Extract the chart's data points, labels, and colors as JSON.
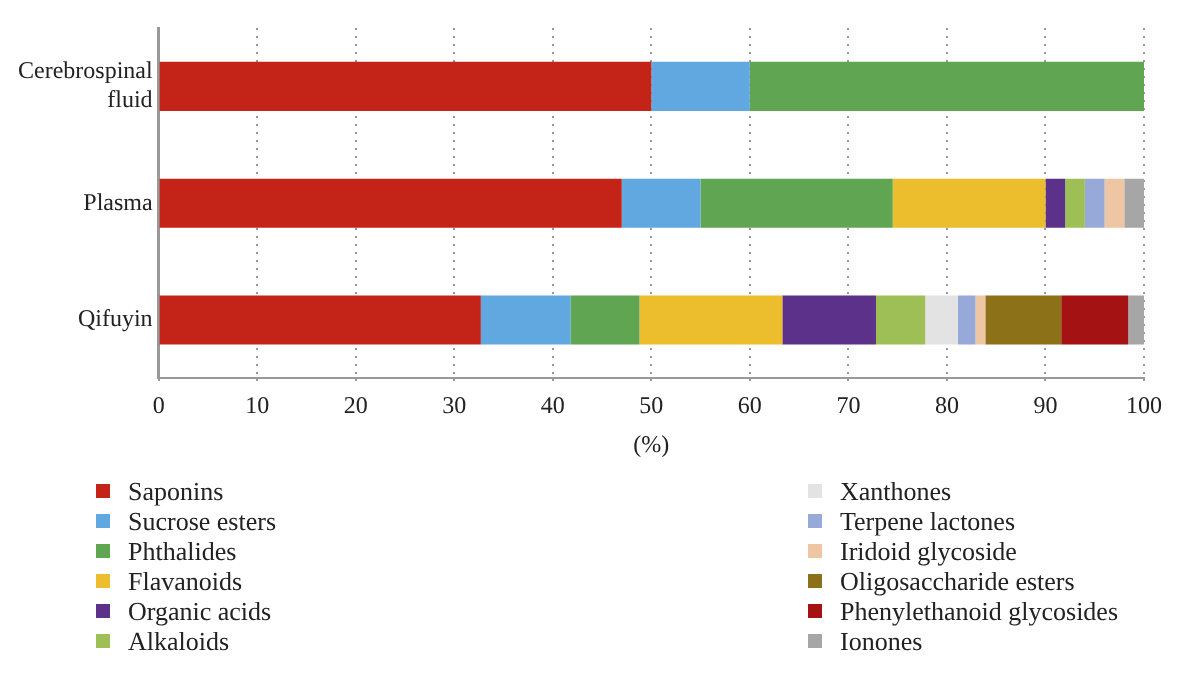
{
  "chart_data": {
    "type": "bar",
    "orientation": "horizontal",
    "stacked": true,
    "xlabel": "(%)",
    "categories": [
      "Cerebrospinal fluid",
      "Plasma",
      "Qifuyin"
    ],
    "xlim": [
      0,
      100
    ],
    "xticks": [
      0,
      10,
      20,
      30,
      40,
      50,
      60,
      70,
      80,
      90,
      100
    ],
    "grid": "x",
    "legend": "bottom",
    "series": [
      {
        "name": "Saponins",
        "color": "#c42418",
        "values": [
          50,
          47,
          32.7
        ]
      },
      {
        "name": "Sucrose esters",
        "color": "#62a8e0",
        "values": [
          10,
          8,
          9.1
        ]
      },
      {
        "name": "Phthalides",
        "color": "#5fa552",
        "values": [
          40,
          19.5,
          7
        ]
      },
      {
        "name": "Flavanoids",
        "color": "#ecbd2c",
        "values": [
          null,
          15.5,
          14.5
        ]
      },
      {
        "name": "Organic acids",
        "color": "#5b3189",
        "values": [
          null,
          2,
          9.5
        ]
      },
      {
        "name": "Alkaloids",
        "color": "#9dbf55",
        "values": [
          null,
          2,
          5
        ]
      },
      {
        "name": "Xanthones",
        "color": "#e3e3e3",
        "values": [
          null,
          null,
          3.3
        ]
      },
      {
        "name": "Terpene lactones",
        "color": "#97a9d8",
        "values": [
          null,
          2,
          1.8
        ]
      },
      {
        "name": "Iridoid glycoside",
        "color": "#efc6a4",
        "values": [
          null,
          2,
          1
        ]
      },
      {
        "name": "Oligosaccharide esters",
        "color": "#8c7119",
        "values": [
          null,
          null,
          7.7
        ]
      },
      {
        "name": "Phenylethanoid glycosides",
        "color": "#a51214",
        "values": [
          null,
          null,
          6.8
        ]
      },
      {
        "name": "Ionones",
        "color": "#a6a6a6",
        "values": [
          null,
          2,
          1.6
        ]
      }
    ]
  }
}
